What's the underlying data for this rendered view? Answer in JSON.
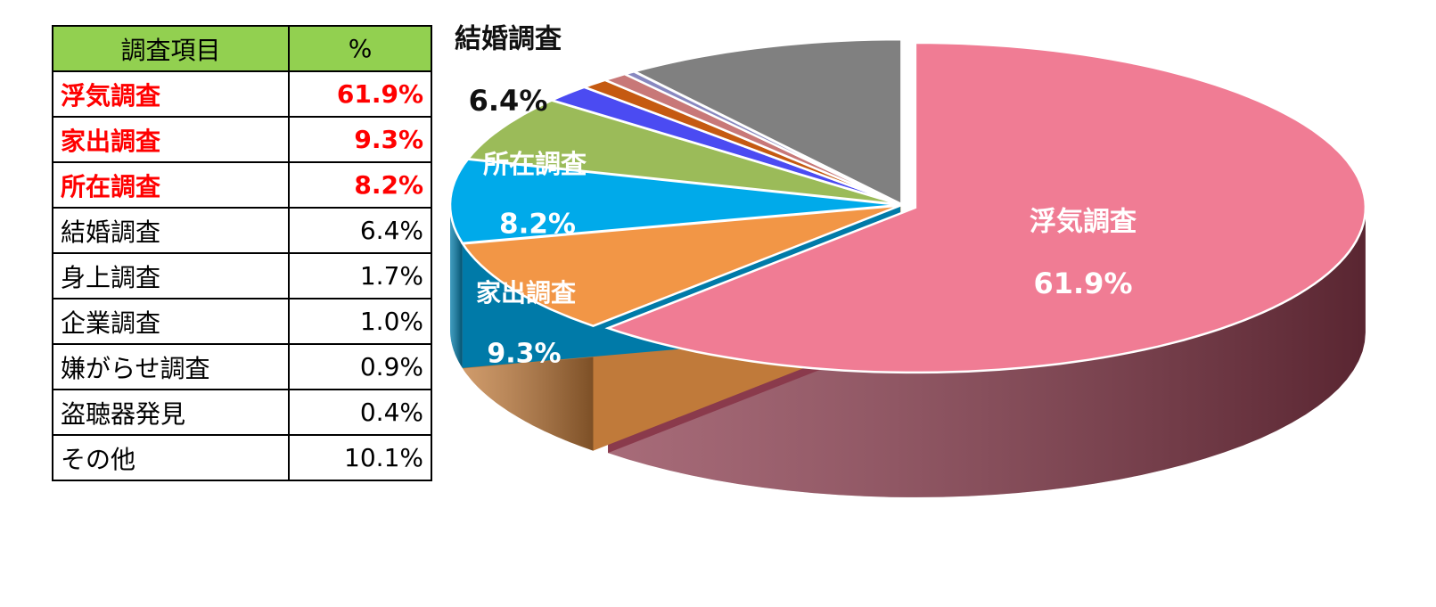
{
  "table": {
    "header": {
      "item": "調査項目",
      "percent": "%"
    },
    "rows": [
      {
        "name": "浮気調査",
        "value": "61.9%",
        "highlight": true
      },
      {
        "name": "家出調査",
        "value": "9.3%",
        "highlight": true
      },
      {
        "name": "所在調査",
        "value": "8.2%",
        "highlight": true
      },
      {
        "name": "結婚調査",
        "value": "6.4%",
        "highlight": false
      },
      {
        "name": "身上調査",
        "value": "1.7%",
        "highlight": false
      },
      {
        "name": "企業調査",
        "value": "1.0%",
        "highlight": false
      },
      {
        "name": "嫌がらせ調査",
        "value": "0.9%",
        "highlight": false
      },
      {
        "name": "盗聴器発見",
        "value": "0.4%",
        "highlight": false
      },
      {
        "name": "その他",
        "value": "10.1%",
        "highlight": false
      }
    ]
  },
  "chart_data": {
    "type": "pie",
    "style": "3d-exploded",
    "categories": [
      "浮気調査",
      "家出調査",
      "所在調査",
      "結婚調査",
      "身上調査",
      "企業調査",
      "嫌がらせ調査",
      "盗聴器発見",
      "その他"
    ],
    "values": [
      61.9,
      9.3,
      8.2,
      6.4,
      1.7,
      1.0,
      0.9,
      0.4,
      10.1
    ],
    "colors": [
      "#f07c94",
      "#f29646",
      "#00aaea",
      "#9bbb59",
      "#4b4bf2",
      "#c55a11",
      "#c87878",
      "#8888c0",
      "#808080"
    ],
    "side_colors": [
      "#8a3a4c",
      "#c07a3a",
      "#007aa8",
      "#6a8a3a",
      "#2a2aa8",
      "#8a3a08",
      "#8a4a4a",
      "#5a5a8a",
      "#505050"
    ],
    "data_labels": [
      {
        "name": "浮気調査",
        "value": "61.9%",
        "color": "#ffffff"
      },
      {
        "name": "家出調査",
        "value": "9.3%",
        "color": "#ffffff"
      },
      {
        "name": "所在調査",
        "value": "8.2%",
        "color": "#ffffff"
      },
      {
        "name": "結婚調査",
        "value": "6.4%",
        "color": "#111111"
      }
    ]
  }
}
